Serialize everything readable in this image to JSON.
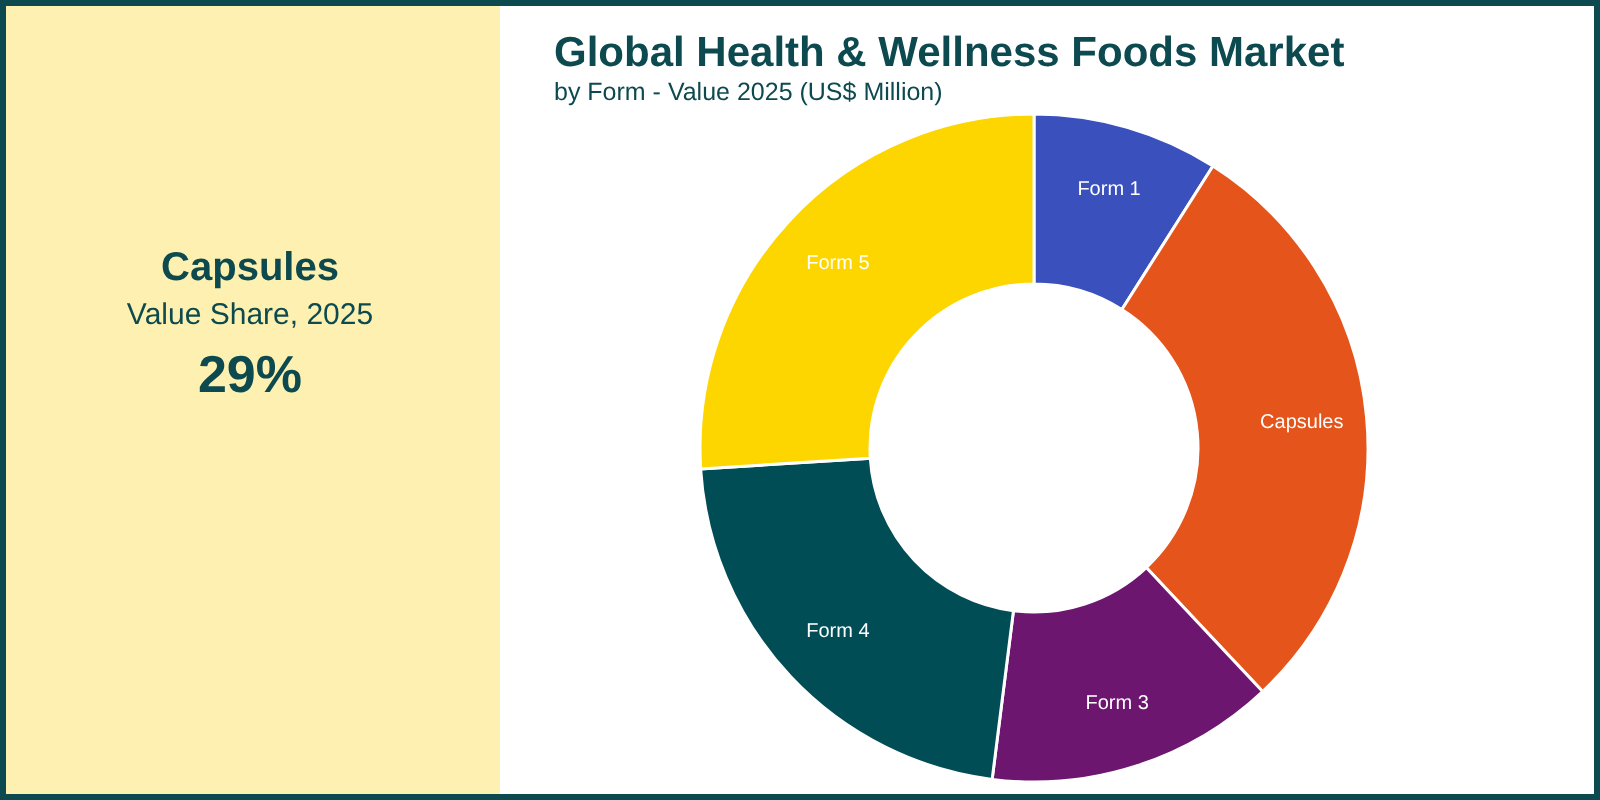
{
  "chart_data": {
    "type": "donut",
    "title": "Global Health & Wellness Foods Market",
    "subtitle": "by Form - Value 2025 (US$ Million)",
    "categories": [
      "Form 1",
      "Capsules",
      "Form 3",
      "Form 4",
      "Form 5"
    ],
    "values": [
      9,
      29,
      14,
      22,
      26
    ],
    "colors": [
      "#3a50bd",
      "#e5541b",
      "#6c1670",
      "#004d55",
      "#fdd600"
    ],
    "annotations": [
      "Capsules",
      "Value Share, 2025",
      "29%"
    ]
  }
}
